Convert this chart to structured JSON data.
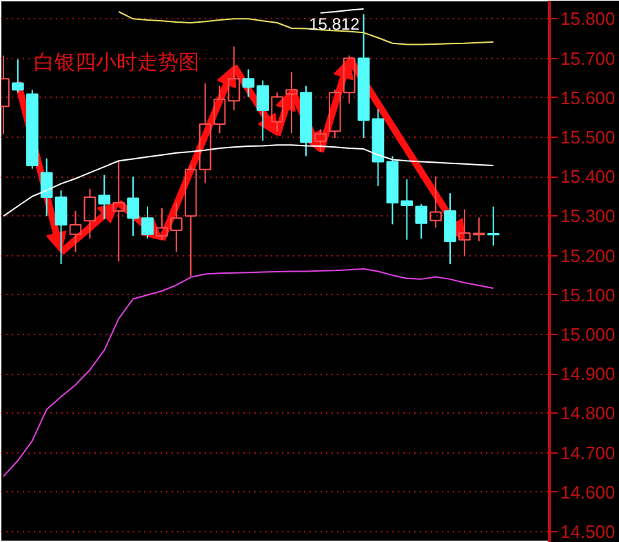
{
  "chart_data": {
    "type": "candlestick",
    "title": "白银四小时走势图",
    "categories": [
      null,
      null,
      null,
      null,
      null,
      null,
      null,
      null,
      null,
      null,
      null,
      null,
      null,
      null,
      null,
      null,
      null,
      null,
      null,
      null,
      null,
      null,
      null,
      null,
      null,
      null,
      null,
      null,
      null,
      null,
      null,
      null,
      null,
      null,
      null
    ],
    "ohlc": [
      [
        15.578,
        15.707,
        15.508,
        15.648
      ],
      [
        15.637,
        15.697,
        15.613,
        15.62
      ],
      [
        15.609,
        15.62,
        15.42,
        15.428
      ],
      [
        15.41,
        15.446,
        15.3,
        15.348
      ],
      [
        15.348,
        15.365,
        15.178,
        15.278
      ],
      [
        15.254,
        15.313,
        15.209,
        15.278
      ],
      [
        15.288,
        15.369,
        15.243,
        15.348
      ],
      [
        15.352,
        15.404,
        15.292,
        15.331
      ],
      [
        15.313,
        15.439,
        15.185,
        15.334
      ],
      [
        15.345,
        15.4,
        15.25,
        15.295
      ],
      [
        15.295,
        15.324,
        15.243,
        15.254
      ],
      [
        15.25,
        15.32,
        15.24,
        15.27
      ],
      [
        15.264,
        15.334,
        15.209,
        15.295
      ],
      [
        15.3,
        15.428,
        15.148,
        15.418
      ],
      [
        15.418,
        15.637,
        15.383,
        15.533
      ],
      [
        15.533,
        15.63,
        15.51,
        15.596
      ],
      [
        15.592,
        15.73,
        15.568,
        15.648
      ],
      [
        15.648,
        15.672,
        15.602,
        15.627
      ],
      [
        15.63,
        15.644,
        15.491,
        15.568
      ],
      [
        15.539,
        15.613,
        15.515,
        15.602
      ],
      [
        15.609,
        15.665,
        15.51,
        15.62
      ],
      [
        15.613,
        15.63,
        15.452,
        15.487
      ],
      [
        15.49,
        15.52,
        15.463,
        15.508
      ],
      [
        15.515,
        15.62,
        15.498,
        15.613
      ],
      [
        15.613,
        15.707,
        15.585,
        15.7
      ],
      [
        15.7,
        15.812,
        15.498,
        15.543
      ],
      [
        15.546,
        15.571,
        15.376,
        15.438
      ],
      [
        15.438,
        15.452,
        15.279,
        15.334
      ],
      [
        15.338,
        15.393,
        15.24,
        15.327
      ],
      [
        15.324,
        15.33,
        15.243,
        15.282
      ],
      [
        15.289,
        15.4,
        15.271,
        15.31
      ],
      [
        15.313,
        15.358,
        15.178,
        15.236
      ],
      [
        15.24,
        15.317,
        15.199,
        15.257
      ],
      [
        15.253,
        15.296,
        15.236,
        15.256
      ],
      [
        15.255,
        15.324,
        15.225,
        15.253
      ]
    ],
    "colors": [
      "#ff5050",
      "#54fcfc",
      "#54fcfc",
      "#54fcfc",
      "#54fcfc",
      "#ff5050",
      "#ff5050",
      "#54fcfc",
      "#ff5050",
      "#54fcfc",
      "#54fcfc",
      "#ff5050",
      "#ff5050",
      "#ff5050",
      "#ff5050",
      "#ff5050",
      "#ff5050",
      "#54fcfc",
      "#54fcfc",
      "#ff5050",
      "#ff5050",
      "#54fcfc",
      "#ff5050",
      "#ff5050",
      "#ff5050",
      "#54fcfc",
      "#54fcfc",
      "#54fcfc",
      "#54fcfc",
      "#54fcfc",
      "#ff5050",
      "#54fcfc",
      "#ff5050",
      "#ff5050",
      "#54fcfc"
    ],
    "series": [
      {
        "type": "line",
        "color": "#e8e060",
        "values": [
          null,
          null,
          null,
          null,
          null,
          null,
          null,
          null,
          15.818,
          15.8,
          15.797,
          15.795,
          15.792,
          15.79,
          15.793,
          15.797,
          15.8,
          15.8,
          15.795,
          15.79,
          15.776,
          15.775,
          15.772,
          15.77,
          15.768,
          15.765,
          15.752,
          15.738,
          15.735,
          15.735,
          15.736,
          15.737,
          15.738,
          15.74,
          15.741
        ]
      },
      {
        "type": "line",
        "color": "#ffffff",
        "values": [
          null,
          null,
          null,
          null,
          null,
          null,
          null,
          null,
          null,
          null,
          null,
          null,
          null,
          null,
          null,
          null,
          null,
          null,
          null,
          null,
          null,
          null,
          15.815,
          15.818,
          15.822,
          15.825,
          null,
          null,
          null,
          null,
          null,
          null,
          null,
          null,
          null
        ]
      },
      {
        "type": "line",
        "color": "#ffffff",
        "values": [
          15.3,
          15.325,
          15.35,
          15.365,
          15.382,
          15.395,
          15.41,
          15.425,
          15.44,
          15.445,
          15.45,
          15.455,
          15.46,
          15.463,
          15.467,
          15.472,
          15.475,
          15.477,
          15.478,
          15.48,
          15.48,
          15.478,
          15.477,
          15.475,
          15.472,
          15.47,
          15.455,
          15.443,
          15.44,
          15.438,
          15.436,
          15.434,
          15.432,
          15.43,
          15.428
        ]
      },
      {
        "type": "line",
        "color": "#e040e0",
        "values": [
          14.64,
          14.68,
          14.73,
          14.81,
          14.842,
          14.872,
          14.91,
          14.96,
          15.04,
          15.09,
          15.1,
          15.11,
          15.125,
          15.145,
          15.153,
          15.155,
          15.156,
          15.157,
          15.158,
          15.159,
          15.16,
          15.16,
          15.161,
          15.162,
          15.164,
          15.166,
          15.16,
          15.15,
          15.142,
          15.14,
          15.146,
          15.14,
          15.131,
          15.124,
          15.117
        ]
      }
    ],
    "annotations": [
      {
        "text": "15.812",
        "y": 15.812
      }
    ],
    "ylim": [
      14.472,
      15.846
    ],
    "yticks": [
      {
        "value": 14.5,
        "label": "14.500"
      },
      {
        "value": 14.6,
        "label": "14.600"
      },
      {
        "value": 14.7,
        "label": "14.700"
      },
      {
        "value": 14.8,
        "label": "14.800"
      },
      {
        "value": 14.9,
        "label": "14.900"
      },
      {
        "value": 15.0,
        "label": "15.000"
      },
      {
        "value": 15.1,
        "label": "15.100"
      },
      {
        "value": 15.2,
        "label": "15.200"
      },
      {
        "value": 15.3,
        "label": "15.300"
      },
      {
        "value": 15.4,
        "label": "15.400"
      },
      {
        "value": 15.5,
        "label": "15.500"
      },
      {
        "value": 15.6,
        "label": "15.600"
      },
      {
        "value": 15.7,
        "label": "15.700"
      },
      {
        "value": 15.8,
        "label": "15.800"
      }
    ],
    "grid": "y",
    "tick_labels": "y"
  }
}
